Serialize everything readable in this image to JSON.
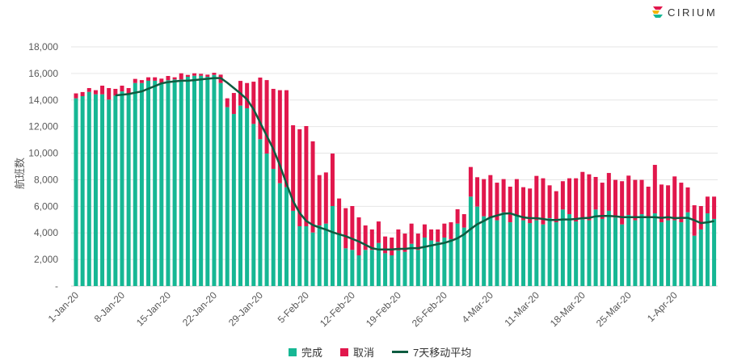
{
  "brand": {
    "name": "CIRIUM"
  },
  "colors": {
    "completed": "#16b794",
    "cancelled": "#e1174c",
    "average": "#0e5c40",
    "grid": "#e6e6e6"
  },
  "chart_data": {
    "type": "bar",
    "stacked": true,
    "title": "",
    "xlabel": "",
    "ylabel": "航班数",
    "ylim": [
      0,
      18000
    ],
    "yticks": [
      0,
      2000,
      4000,
      6000,
      8000,
      10000,
      12000,
      14000,
      16000,
      18000
    ],
    "ytick_labels": [
      "-",
      "2,000",
      "4,000",
      "6,000",
      "8,000",
      "10,000",
      "12,000",
      "14,000",
      "16,000",
      "18,000"
    ],
    "xtick_labels": [
      "1-Jan-20",
      "8-Jan-20",
      "15-Jan-20",
      "22-Jan-20",
      "29-Jan-20",
      "5-Feb-20",
      "12-Feb-20",
      "19-Feb-20",
      "26-Feb-20",
      "4-Mar-20",
      "11-Mar-20",
      "18-Mar-20",
      "25-Mar-20",
      "1-Apr-20"
    ],
    "x_start": "1-Jan-20",
    "x_end": "7-Apr-20",
    "grid": true,
    "legend": {
      "position": "bottom",
      "entries": [
        "完成",
        "取消",
        "7天移动平均"
      ]
    },
    "series": [
      {
        "name": "完成",
        "kind": "bar",
        "values": [
          14130,
          14290,
          14610,
          14430,
          14430,
          14030,
          14330,
          14650,
          14430,
          15280,
          15280,
          15450,
          15450,
          15240,
          15490,
          15550,
          15550,
          15750,
          15830,
          15830,
          15750,
          15890,
          15280,
          13460,
          12950,
          13580,
          13380,
          12200,
          11050,
          9970,
          8820,
          7740,
          7440,
          5660,
          4500,
          4500,
          4030,
          4560,
          4700,
          6020,
          3850,
          2840,
          2720,
          2310,
          2720,
          2720,
          3240,
          2470,
          2310,
          2680,
          2570,
          3180,
          2720,
          3650,
          3430,
          3320,
          3650,
          3530,
          4700,
          4400,
          6730,
          5980,
          5250,
          5110,
          4950,
          5550,
          4800,
          5310,
          4950,
          4740,
          4950,
          4640,
          5110,
          4800,
          5760,
          5410,
          4860,
          5010,
          4950,
          5760,
          5050,
          5660,
          5150,
          4640,
          5350,
          4950,
          5410,
          5110,
          5470,
          4800,
          4950,
          4950,
          4800,
          5550,
          3790,
          4260,
          5470,
          5050
        ]
      },
      {
        "name": "取消",
        "kind": "bar",
        "values": [
          370,
          310,
          290,
          310,
          650,
          870,
          510,
          430,
          470,
          310,
          220,
          260,
          260,
          370,
          320,
          160,
          460,
          140,
          180,
          140,
          160,
          160,
          630,
          670,
          1580,
          1860,
          1900,
          3180,
          4640,
          5530,
          6020,
          7000,
          7300,
          6440,
          7300,
          7540,
          6860,
          3790,
          3850,
          3950,
          2740,
          3020,
          3300,
          2860,
          1840,
          1540,
          1620,
          1260,
          1340,
          1580,
          1380,
          1520,
          1230,
          990,
          830,
          940,
          1050,
          1270,
          1080,
          1010,
          2230,
          2210,
          2800,
          3240,
          2830,
          2500,
          2680,
          2740,
          2490,
          2600,
          3340,
          3470,
          2470,
          2340,
          2130,
          2700,
          3250,
          3580,
          3460,
          2450,
          2730,
          2850,
          2840,
          3250,
          2960,
          3040,
          2580,
          2370,
          3650,
          2840,
          2630,
          3300,
          2980,
          1870,
          2290,
          1760,
          1260,
          1680
        ]
      },
      {
        "name": "7天移动平均",
        "kind": "line",
        "values": [
          null,
          null,
          null,
          null,
          null,
          null,
          14350,
          14400,
          14450,
          14550,
          14650,
          14850,
          15050,
          15250,
          15350,
          15400,
          15450,
          15450,
          15500,
          15550,
          15600,
          15650,
          15650,
          15300,
          14900,
          14500,
          14050,
          13300,
          12300,
          11300,
          10300,
          9100,
          7700,
          6400,
          5500,
          4900,
          4600,
          4400,
          4250,
          4050,
          3900,
          3750,
          3550,
          3350,
          3100,
          2850,
          2750,
          2750,
          2750,
          2800,
          2800,
          2850,
          2850,
          2950,
          3050,
          3150,
          3250,
          3400,
          3600,
          3900,
          4300,
          4650,
          4900,
          5170,
          5310,
          5450,
          5470,
          5310,
          5170,
          5110,
          5110,
          5050,
          4970,
          4970,
          5010,
          5010,
          5050,
          5110,
          5130,
          5250,
          5270,
          5270,
          5250,
          5190,
          5190,
          5190,
          5190,
          5190,
          5190,
          5130,
          5190,
          5110,
          5130,
          5130,
          4950,
          4740,
          4800,
          4890
        ]
      }
    ]
  }
}
